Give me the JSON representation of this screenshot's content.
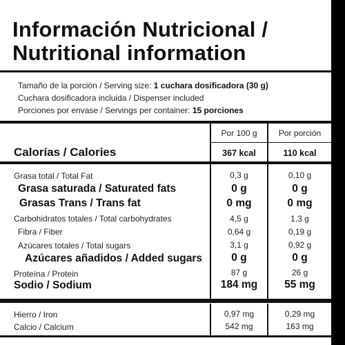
{
  "title": {
    "line1": "Información Nutricional /",
    "line2": "Nutritional information"
  },
  "serving": {
    "size_prefix": "Tamaño de la porción / Serving size: ",
    "size_value": "1 cuchara dosificadora (30 g)",
    "dispenser": "Cuchara dosificadora incluida / Dispenser included",
    "servings_prefix": "Porciones por envase / Servings per container: ",
    "servings_value": "15 porciones"
  },
  "columns": {
    "per100": "Por 100 g",
    "perserving": "Por porción"
  },
  "calories": {
    "label": "Calorías / Calories",
    "per100": "367 kcal",
    "perserving": "110 kcal"
  },
  "nutrients": [
    {
      "label": "Grasa total / Total Fat",
      "per100": "0,3 g",
      "perserving": "0,10 g",
      "style": "small"
    },
    {
      "label": "Grasa saturada / Saturated fats",
      "per100": "0 g",
      "perserving": "0 g",
      "style": "big"
    },
    {
      "label": "Grasas Trans / Trans fat",
      "per100": "0 mg",
      "perserving": "0 mg",
      "style": "big"
    },
    {
      "label": "Carbohidratos totales / Total carbohydrates",
      "per100": "4,5 g",
      "perserving": "1,3 g",
      "style": "small"
    },
    {
      "label": "Fibra / Fiber",
      "per100": "0,64 g",
      "perserving": "0,19 g",
      "style": "small"
    },
    {
      "label": "Azúcares totales / Total sugars",
      "per100": "3,1 g",
      "perserving": "0,92 g",
      "style": "small"
    },
    {
      "label": "Azúcares añadidos / Added sugars",
      "per100": "0 g",
      "perserving": "0 g",
      "style": "big"
    },
    {
      "label": "Proteína / Protein",
      "per100": "87 g",
      "perserving": "26 g",
      "style": "small"
    },
    {
      "label": "Sodio / Sodium",
      "per100": "184 mg",
      "perserving": "55 mg",
      "style": "big"
    }
  ],
  "minerals": [
    {
      "label": "Hierro / Iron",
      "per100": "0,97 mg",
      "perserving": "0,29 mg"
    },
    {
      "label": "Calcio / Calcium",
      "per100": "542 mg",
      "perserving": "163 mg"
    }
  ]
}
